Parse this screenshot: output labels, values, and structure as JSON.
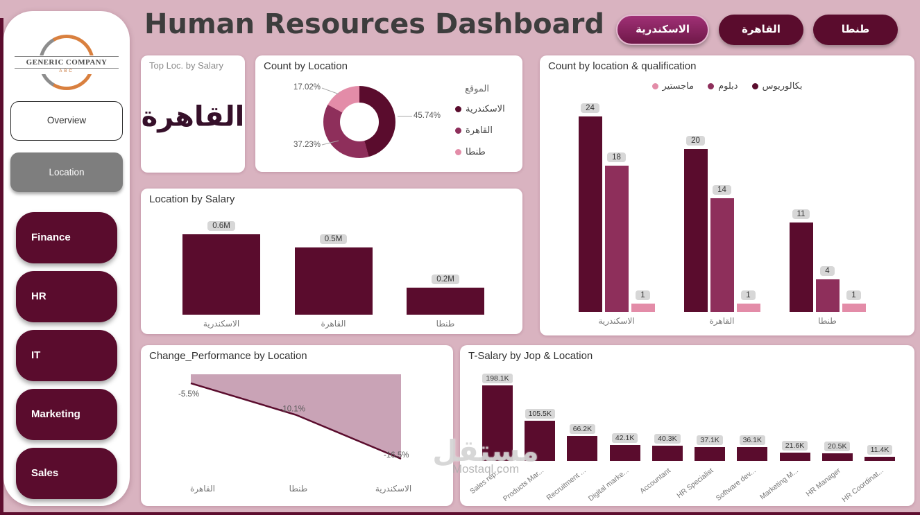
{
  "page": {
    "title": "Human Resources Dashboard"
  },
  "colors": {
    "background": "#d9b3c0",
    "dark_maroon": "#5a0c2d",
    "plum": "#8e2f5b",
    "pink": "#e38ca8",
    "area_fill": "#c9a3b6",
    "label_box": "#d7d7d7",
    "gray_button": "#7e7e7e"
  },
  "sidebar": {
    "logo": {
      "company": "GENERIC COMPANY",
      "sub": "ABC"
    },
    "nav": [
      {
        "name": "overview",
        "label": "Overview",
        "variant": "outline"
      },
      {
        "name": "location",
        "label": "Location",
        "variant": "gray"
      },
      {
        "name": "finance",
        "label": "Finance",
        "variant": "maroon"
      },
      {
        "name": "hr",
        "label": "HR",
        "variant": "maroon"
      },
      {
        "name": "it",
        "label": "IT",
        "variant": "maroon"
      },
      {
        "name": "marketing",
        "label": "Marketing",
        "variant": "maroon"
      },
      {
        "name": "sales",
        "label": "Sales",
        "variant": "maroon"
      }
    ]
  },
  "filters": {
    "buttons": [
      {
        "name": "alexandria",
        "label": "الاسكندرية",
        "selected": true
      },
      {
        "name": "cairo",
        "label": "القاهرة",
        "selected": false
      },
      {
        "name": "tanta",
        "label": "طنطا",
        "selected": false
      }
    ]
  },
  "kpi": {
    "title": "Top Loc. by Salary",
    "value": "القاهرة"
  },
  "watermark": {
    "line1": "مستقل",
    "line2": "Mostaql.com"
  },
  "chart_data": [
    {
      "id": "donut",
      "type": "pie",
      "title": "Count by Location",
      "legend_title": "الموقع",
      "legend_position": "right",
      "slices": [
        {
          "name": "alexandria",
          "label": "الاسكندرية",
          "value": 45.74,
          "display": "45.74%",
          "color": "#5a0c2d"
        },
        {
          "name": "cairo",
          "label": "القاهرة",
          "value": 37.23,
          "display": "37.23%",
          "color": "#8e2f5b"
        },
        {
          "name": "tanta",
          "label": "طنطا",
          "value": 17.02,
          "display": "17.02%",
          "color": "#e38ca8"
        }
      ]
    },
    {
      "id": "qualification",
      "type": "bar",
      "title": "Count by location & qualification",
      "legend_position": "top",
      "categories": [
        "الاسكندرية",
        "القاهرة",
        "طنطا"
      ],
      "series": [
        {
          "name": "bachelor",
          "label": "بكالوريوس",
          "color": "#5a0c2d",
          "values": [
            24,
            20,
            11
          ]
        },
        {
          "name": "diploma",
          "label": "دبلوم",
          "color": "#8e2f5b",
          "values": [
            18,
            14,
            4
          ]
        },
        {
          "name": "master",
          "label": "ماجستير",
          "color": "#e38ca8",
          "values": [
            1,
            1,
            1
          ]
        }
      ],
      "ymax": 24
    },
    {
      "id": "salary",
      "type": "bar",
      "title": "Location by Salary",
      "categories": [
        "الاسكندرية",
        "القاهرة",
        "طنطا"
      ],
      "values": [
        0.6,
        0.5,
        0.2
      ],
      "value_labels": [
        "0.6M",
        "0.5M",
        "0.2M"
      ]
    },
    {
      "id": "performance",
      "type": "area",
      "title": "Change_Performance by Location",
      "categories": [
        "القاهرة",
        "طنطا",
        "الاسكندرية"
      ],
      "values": [
        -5.5,
        -10.1,
        -16.5
      ],
      "value_labels": [
        "-5.5%",
        "-10.1%",
        "-16.5%"
      ]
    },
    {
      "id": "tsalary",
      "type": "bar",
      "title": "T-Salary by Jop & Location",
      "categories": [
        "Sales rep...",
        "Products Mar...",
        "Recruitment ...",
        "Digital marke...",
        "Accountant",
        "HR Specialist",
        "Software dev...",
        "Marketing M...",
        "HR Manager",
        "HR Coordinat..."
      ],
      "values": [
        198.1,
        105.5,
        66.2,
        42.1,
        40.3,
        37.1,
        36.1,
        21.6,
        20.5,
        11.4
      ],
      "value_labels": [
        "198.1K",
        "105.5K",
        "66.2K",
        "42.1K",
        "40.3K",
        "37.1K",
        "36.1K",
        "21.6K",
        "20.5K",
        "11.4K"
      ]
    }
  ]
}
